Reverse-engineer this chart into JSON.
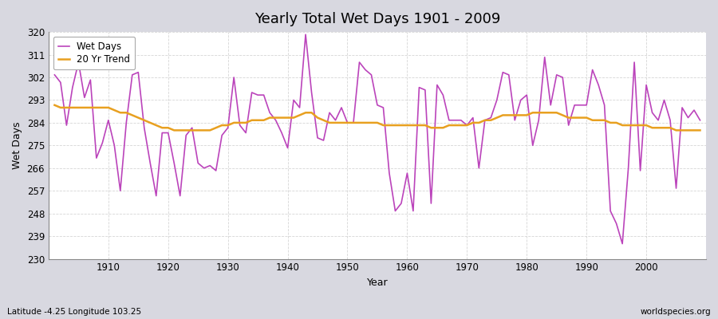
{
  "title": "Yearly Total Wet Days 1901 - 2009",
  "xlabel": "Year",
  "ylabel": "Wet Days",
  "footer_left": "Latitude -4.25 Longitude 103.25",
  "footer_right": "worldspecies.org",
  "ylim": [
    230,
    320
  ],
  "yticks": [
    230,
    239,
    248,
    257,
    266,
    275,
    284,
    293,
    302,
    311,
    320
  ],
  "wet_days_color": "#bb44bb",
  "trend_color": "#e8a020",
  "fig_bg_color": "#d8d8e0",
  "plot_bg_color": "#f0f0f8",
  "wet_days": {
    "1901": 303,
    "1902": 300,
    "1903": 283,
    "1904": 298,
    "1905": 308,
    "1906": 294,
    "1907": 301,
    "1908": 270,
    "1909": 276,
    "1910": 285,
    "1911": 275,
    "1912": 257,
    "1913": 284,
    "1914": 303,
    "1915": 304,
    "1916": 282,
    "1917": 268,
    "1918": 255,
    "1919": 280,
    "1920": 280,
    "1921": 268,
    "1922": 255,
    "1923": 279,
    "1924": 282,
    "1925": 268,
    "1926": 266,
    "1927": 267,
    "1928": 265,
    "1929": 279,
    "1930": 282,
    "1931": 302,
    "1932": 283,
    "1933": 280,
    "1934": 296,
    "1935": 295,
    "1936": 295,
    "1937": 288,
    "1938": 285,
    "1939": 280,
    "1940": 274,
    "1941": 293,
    "1942": 290,
    "1943": 319,
    "1944": 296,
    "1945": 278,
    "1946": 277,
    "1947": 288,
    "1948": 285,
    "1949": 290,
    "1950": 284,
    "1951": 284,
    "1952": 308,
    "1953": 305,
    "1954": 303,
    "1955": 291,
    "1956": 290,
    "1957": 264,
    "1958": 249,
    "1959": 252,
    "1960": 264,
    "1961": 249,
    "1962": 298,
    "1963": 297,
    "1964": 252,
    "1965": 299,
    "1966": 295,
    "1967": 285,
    "1968": 285,
    "1969": 285,
    "1970": 283,
    "1971": 286,
    "1972": 266,
    "1973": 285,
    "1974": 286,
    "1975": 293,
    "1976": 304,
    "1977": 303,
    "1978": 285,
    "1979": 293,
    "1980": 295,
    "1981": 275,
    "1982": 285,
    "1983": 310,
    "1984": 291,
    "1985": 303,
    "1986": 302,
    "1987": 283,
    "1988": 291,
    "1989": 291,
    "1990": 291,
    "1991": 305,
    "1992": 299,
    "1993": 291,
    "1994": 249,
    "1995": 244,
    "1996": 236,
    "1997": 266,
    "1998": 308,
    "1999": 265,
    "2000": 299,
    "2001": 288,
    "2002": 285,
    "2003": 293,
    "2004": 285,
    "2005": 258,
    "2006": 290,
    "2007": 286,
    "2008": 289,
    "2009": 285
  },
  "trend_20yr": {
    "1901": 291,
    "1902": 290,
    "1903": 290,
    "1904": 290,
    "1905": 290,
    "1906": 290,
    "1907": 290,
    "1908": 290,
    "1909": 290,
    "1910": 290,
    "1911": 289,
    "1912": 288,
    "1913": 288,
    "1914": 287,
    "1915": 286,
    "1916": 285,
    "1917": 284,
    "1918": 283,
    "1919": 282,
    "1920": 282,
    "1921": 281,
    "1922": 281,
    "1923": 281,
    "1924": 281,
    "1925": 281,
    "1926": 281,
    "1927": 281,
    "1928": 282,
    "1929": 283,
    "1930": 283,
    "1931": 284,
    "1932": 284,
    "1933": 284,
    "1934": 285,
    "1935": 285,
    "1936": 285,
    "1937": 286,
    "1938": 286,
    "1939": 286,
    "1940": 286,
    "1941": 286,
    "1942": 287,
    "1943": 288,
    "1944": 288,
    "1945": 286,
    "1946": 285,
    "1947": 284,
    "1948": 284,
    "1949": 284,
    "1950": 284,
    "1951": 284,
    "1952": 284,
    "1953": 284,
    "1954": 284,
    "1955": 284,
    "1956": 283,
    "1957": 283,
    "1958": 283,
    "1959": 283,
    "1960": 283,
    "1961": 283,
    "1962": 283,
    "1963": 283,
    "1964": 282,
    "1965": 282,
    "1966": 282,
    "1967": 283,
    "1968": 283,
    "1969": 283,
    "1970": 283,
    "1971": 284,
    "1972": 284,
    "1973": 285,
    "1974": 285,
    "1975": 286,
    "1976": 287,
    "1977": 287,
    "1978": 287,
    "1979": 287,
    "1980": 287,
    "1981": 288,
    "1982": 288,
    "1983": 288,
    "1984": 288,
    "1985": 288,
    "1986": 287,
    "1987": 286,
    "1988": 286,
    "1989": 286,
    "1990": 286,
    "1991": 285,
    "1992": 285,
    "1993": 285,
    "1994": 284,
    "1995": 284,
    "1996": 283,
    "1997": 283,
    "1998": 283,
    "1999": 283,
    "2000": 283,
    "2001": 282,
    "2002": 282,
    "2003": 282,
    "2004": 282,
    "2005": 281,
    "2006": 281,
    "2007": 281,
    "2008": 281,
    "2009": 281
  }
}
